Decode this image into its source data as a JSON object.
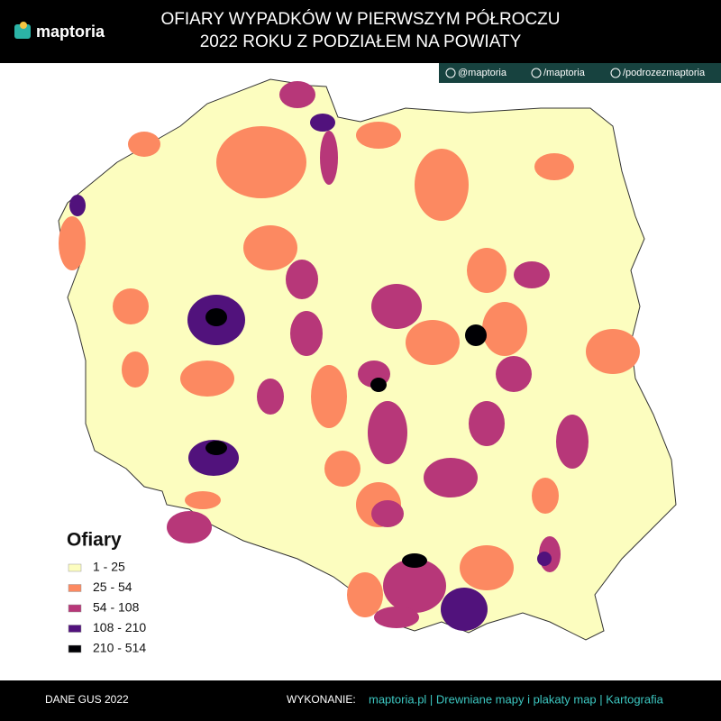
{
  "header": {
    "logo": "maptoria",
    "title_lines": [
      "OFIARY WYPADKÓW W PIERWSZYM PÓŁROCZU",
      "2022 ROKU Z PODZIAŁEM NA POWIATY"
    ]
  },
  "social": [
    "@maptoria",
    "/maptoria",
    "/podrozezmaptoria"
  ],
  "legend": {
    "title": "Ofiary",
    "items": [
      {
        "label": "1 - 25",
        "color": "#fcfdbf"
      },
      {
        "label": "25 - 54",
        "color": "#fc8961"
      },
      {
        "label": "54 - 108",
        "color": "#b73779"
      },
      {
        "label": "108 - 210",
        "color": "#51127c"
      },
      {
        "label": "210 - 514",
        "color": "#000004"
      }
    ]
  },
  "footer": {
    "source": "DANE GUS 2022",
    "credit_label": "WYKONANIE:",
    "credit": "maptoria.pl | Drewniane mapy i plakaty map | Kartografia"
  }
}
